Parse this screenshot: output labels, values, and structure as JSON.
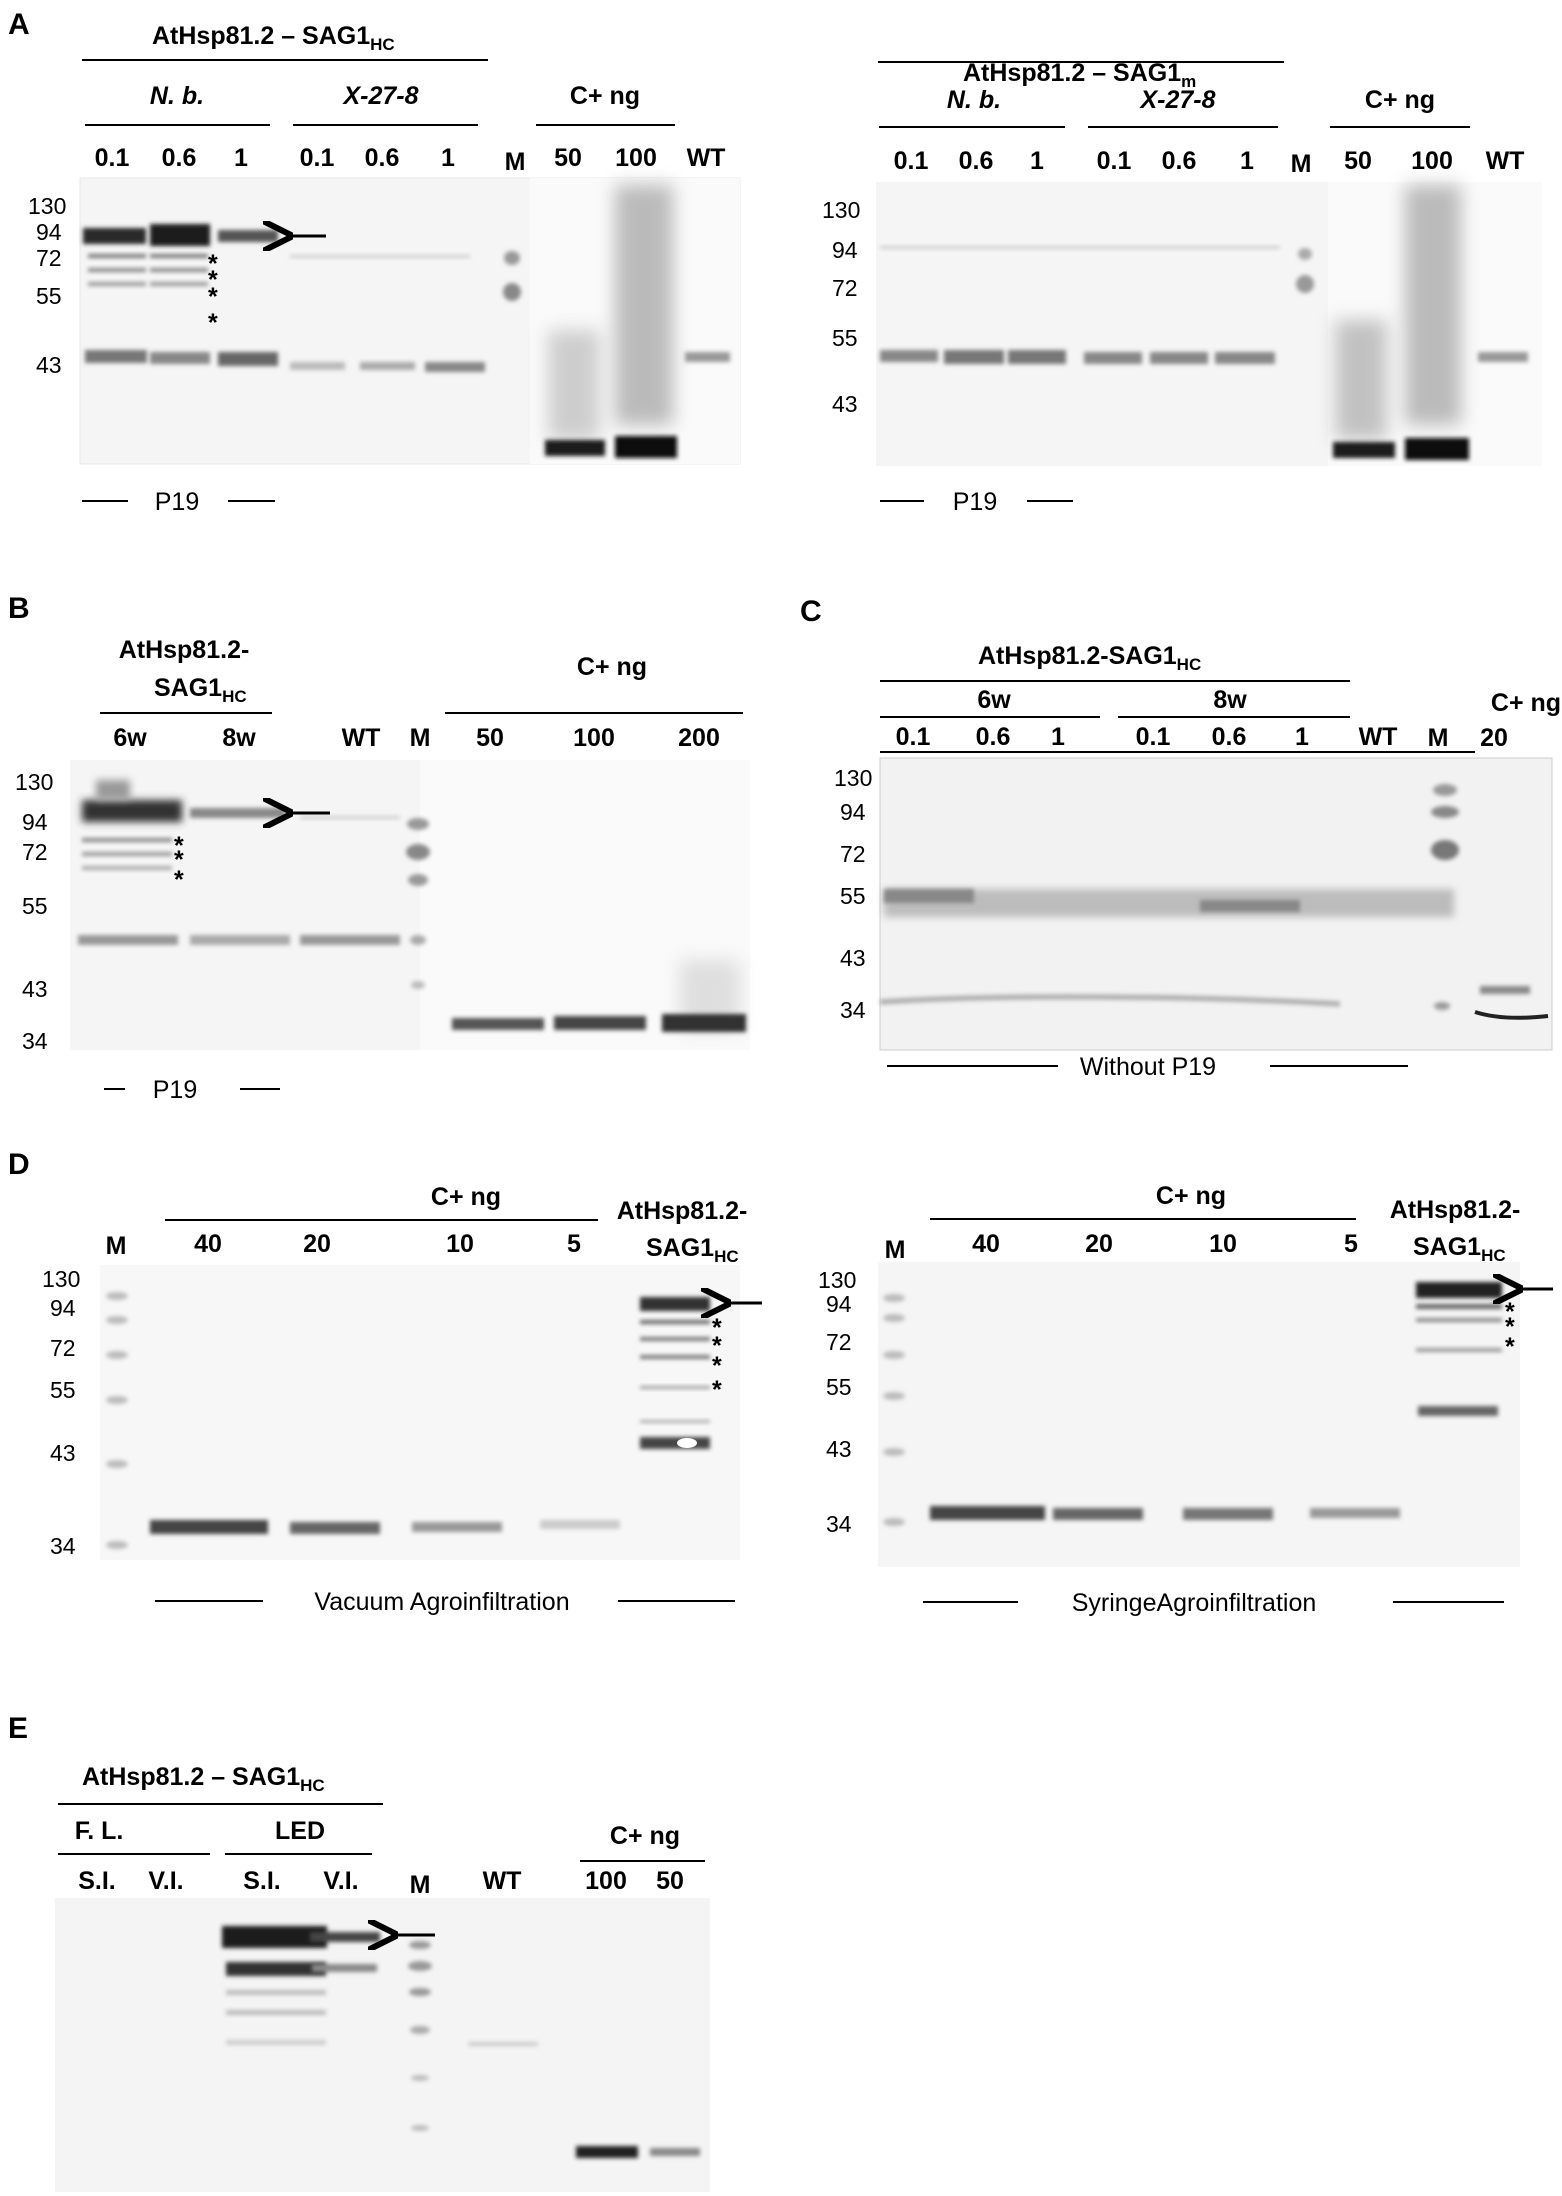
{
  "panels": [
    {
      "id": "A1",
      "letter": "A",
      "title": {
        "main": "AtHsp81.2  –  SAG1",
        "sub": "HC"
      },
      "groups": [
        {
          "label": "N. b.",
          "italic": true
        },
        {
          "label": "X-27-8",
          "italic": true
        },
        {
          "label": "C+ ng",
          "italic": false
        }
      ],
      "lanes": [
        "0.1",
        "0.6",
        "1",
        "0.1",
        "0.6",
        "1",
        "M",
        "50",
        "100",
        "WT"
      ],
      "mw": [
        "130",
        "94",
        "72",
        "55",
        "43"
      ],
      "stars": [
        "*",
        "*",
        "*",
        "*"
      ],
      "footer": "P19"
    },
    {
      "id": "A2",
      "title": {
        "main": "AtHsp81.2  –  SAG1",
        "sub": "m"
      },
      "groups": [
        {
          "label": "N. b.",
          "italic": true
        },
        {
          "label": "X-27-8",
          "italic": true
        },
        {
          "label": "C+ ng",
          "italic": false
        }
      ],
      "lanes": [
        "0.1",
        "0.6",
        "1",
        "0.1",
        "0.6",
        "1",
        "M",
        "50",
        "100",
        "WT"
      ],
      "mw": [
        "130",
        "94",
        "72",
        "55",
        "43"
      ],
      "footer": "P19"
    },
    {
      "id": "B",
      "letter": "B",
      "title": {
        "line1": "AtHsp81.2-",
        "line2": "SAG1",
        "sub": "HC"
      },
      "groups": [
        {
          "label": "C+ ng",
          "italic": false
        }
      ],
      "lanes": [
        "6w",
        "8w",
        "WT",
        "M",
        "50",
        "100",
        "200"
      ],
      "mw": [
        "130",
        "94",
        "72",
        "55",
        "43",
        "34"
      ],
      "stars": [
        "*",
        "*",
        "*"
      ],
      "footer": "P19"
    },
    {
      "id": "C",
      "letter": "C",
      "title": {
        "main": "AtHsp81.2-SAG1",
        "sub": "HC"
      },
      "groups": [
        {
          "label": "6w",
          "italic": false
        },
        {
          "label": "8w",
          "italic": false
        },
        {
          "label": "C+ ng",
          "italic": false
        }
      ],
      "lanes": [
        "0.1",
        "0.6",
        "1",
        "0.1",
        "0.6",
        "1",
        "WT",
        "M",
        "20"
      ],
      "mw": [
        "130",
        "94",
        "72",
        "55",
        "43",
        "34"
      ],
      "footer": "Without P19"
    },
    {
      "id": "D1",
      "letter": "D",
      "groups": [
        {
          "label": "C+ ng",
          "italic": false
        }
      ],
      "side_label": {
        "line1": "AtHsp81.2-",
        "line2": "SAG1",
        "sub": "HC"
      },
      "lanes": [
        "M",
        "40",
        "20",
        "10",
        "5"
      ],
      "mw": [
        "130",
        "94",
        "72",
        "55",
        "43",
        "34"
      ],
      "stars": [
        "*",
        "*",
        "*",
        "*"
      ],
      "footer": "Vacuum Agroinfiltration"
    },
    {
      "id": "D2",
      "groups": [
        {
          "label": "C+ ng",
          "italic": false
        }
      ],
      "side_label": {
        "line1": "AtHsp81.2-",
        "line2": "SAG1",
        "sub": "HC"
      },
      "lanes": [
        "M",
        "40",
        "20",
        "10",
        "5"
      ],
      "mw": [
        "130",
        "94",
        "72",
        "55",
        "43",
        "34"
      ],
      "stars": [
        "*",
        "*",
        "*"
      ],
      "footer": "SyringeAgroinfiltration"
    },
    {
      "id": "E",
      "letter": "E",
      "title": {
        "main": "AtHsp81.2  –  SAG1",
        "sub": "HC"
      },
      "groups": [
        {
          "label": "F. L.",
          "italic": false
        },
        {
          "label": "LED",
          "italic": false
        },
        {
          "label": "C+ ng",
          "italic": false
        }
      ],
      "lanes": [
        "S.I.",
        "V.I.",
        "S.I.",
        "V.I.",
        "M",
        "WT",
        "100",
        "50"
      ]
    }
  ],
  "colors": {
    "ink": "#000000",
    "band": "#1a1a1a",
    "gel": "#f4f4f4"
  }
}
